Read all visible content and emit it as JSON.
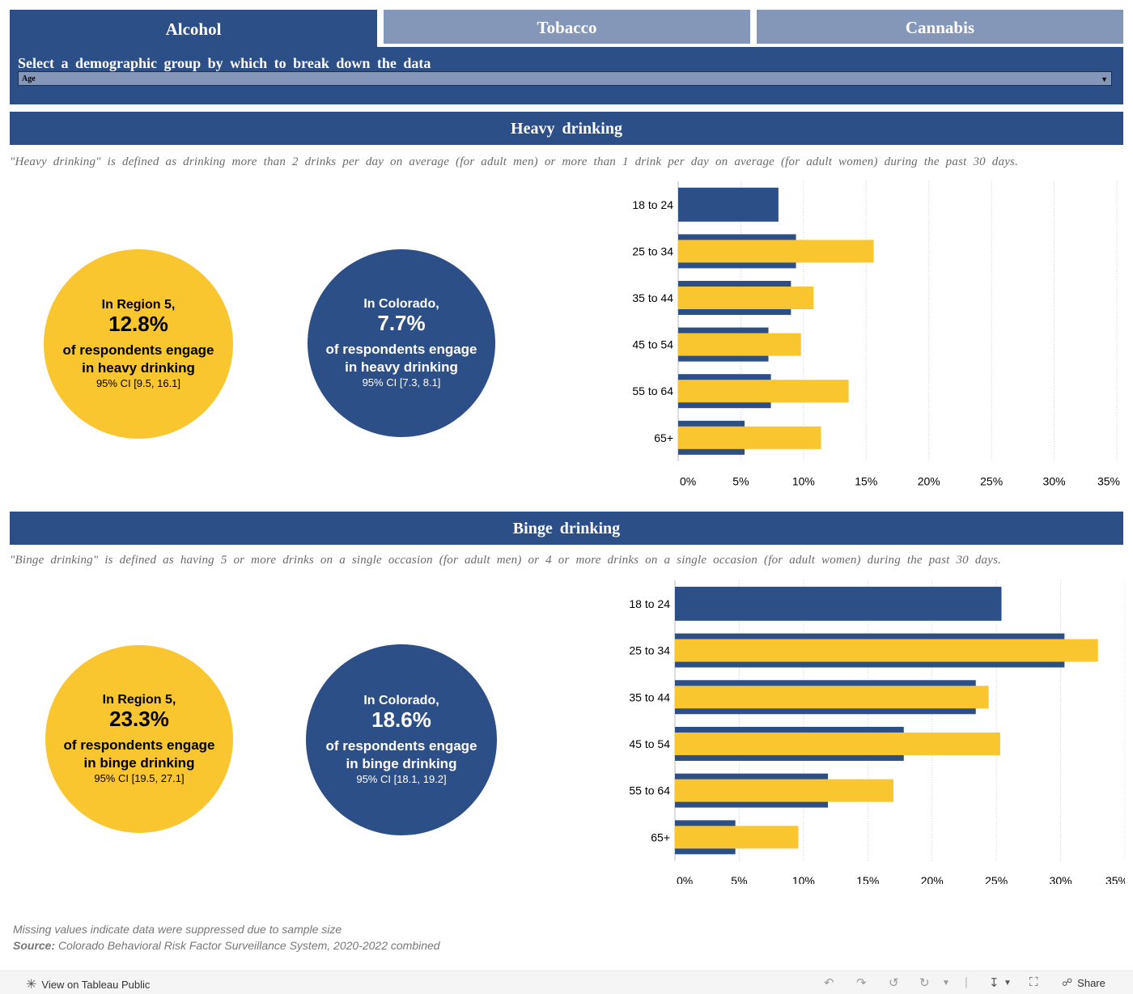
{
  "tabs": [
    {
      "label": "Alcohol"
    },
    {
      "label": "Tobacco"
    },
    {
      "label": "Cannabis"
    }
  ],
  "selector": {
    "label": "Select a demographic group by which to break down the data",
    "value": "Age"
  },
  "heavy": {
    "title": "Heavy drinking",
    "definition": "\"Heavy drinking\" is defined as drinking more than 2 drinks per day on average (for adult men) or more than 1 drink per day on average (for adult women) during the past 30 days.",
    "region": {
      "intro": "In Region 5,",
      "value": "12.8%",
      "desc1": "of respondents engage",
      "desc2": "in heavy drinking",
      "ci": "95% CI [9.5, 16.1]"
    },
    "colorado": {
      "intro": "In Colorado,",
      "value": "7.7%",
      "desc1": "of respondents engage",
      "desc2": "in heavy drinking",
      "ci": "95% CI [7.3, 8.1]"
    }
  },
  "binge": {
    "title": "Binge drinking",
    "definition": "\"Binge drinking\" is defined as having 5 or more drinks on a single occasion (for adult men) or 4 or more drinks on a single occasion (for adult women) during the past 30 days.",
    "region": {
      "intro": "In Region 5,",
      "value": "23.3%",
      "desc1": "of respondents engage",
      "desc2": "in binge drinking",
      "ci": "95% CI [19.5, 27.1]"
    },
    "colorado": {
      "intro": "In Colorado,",
      "value": "18.6%",
      "desc1": "of respondents engage",
      "desc2": "in binge drinking",
      "ci": "95% CI [18.1, 19.2]"
    }
  },
  "chart_data": [
    {
      "type": "bar",
      "orientation": "horizontal",
      "title": "Heavy drinking",
      "categories": [
        "18 to 24",
        "25 to 34",
        "35 to 44",
        "45 to 54",
        "55 to 64",
        "65+"
      ],
      "series": [
        {
          "name": "Colorado",
          "color": "#2d4f87",
          "values": [
            8.0,
            9.4,
            9.0,
            7.2,
            7.4,
            5.3
          ]
        },
        {
          "name": "Region 5",
          "color": "#f9c62f",
          "values": [
            null,
            15.6,
            10.8,
            9.8,
            13.6,
            11.4
          ]
        }
      ],
      "xticks": [
        "0%",
        "5%",
        "10%",
        "15%",
        "20%",
        "25%",
        "30%",
        "35%"
      ],
      "xlim": [
        0,
        35
      ]
    },
    {
      "type": "bar",
      "orientation": "horizontal",
      "title": "Binge drinking",
      "categories": [
        "18 to 24",
        "25 to 34",
        "35 to 44",
        "45 to 54",
        "55 to 64",
        "65+"
      ],
      "series": [
        {
          "name": "Colorado",
          "color": "#2d4f87",
          "values": [
            25.4,
            30.3,
            23.4,
            17.8,
            11.9,
            4.7
          ]
        },
        {
          "name": "Region 5",
          "color": "#f9c62f",
          "values": [
            null,
            32.9,
            24.4,
            25.3,
            17.0,
            9.6
          ]
        }
      ],
      "xticks": [
        "0%",
        "5%",
        "10%",
        "15%",
        "20%",
        "25%",
        "30%",
        "35%"
      ],
      "xlim": [
        0,
        35
      ]
    }
  ],
  "footnote": {
    "missing": "Missing values indicate data were suppressed due to sample size",
    "source_label": "Source:",
    "source_text": "Colorado Behavioral Risk Factor Surveillance System, 2020-2022 combined"
  },
  "toolbar": {
    "view_label": "View on Tableau Public",
    "share_label": "Share"
  }
}
